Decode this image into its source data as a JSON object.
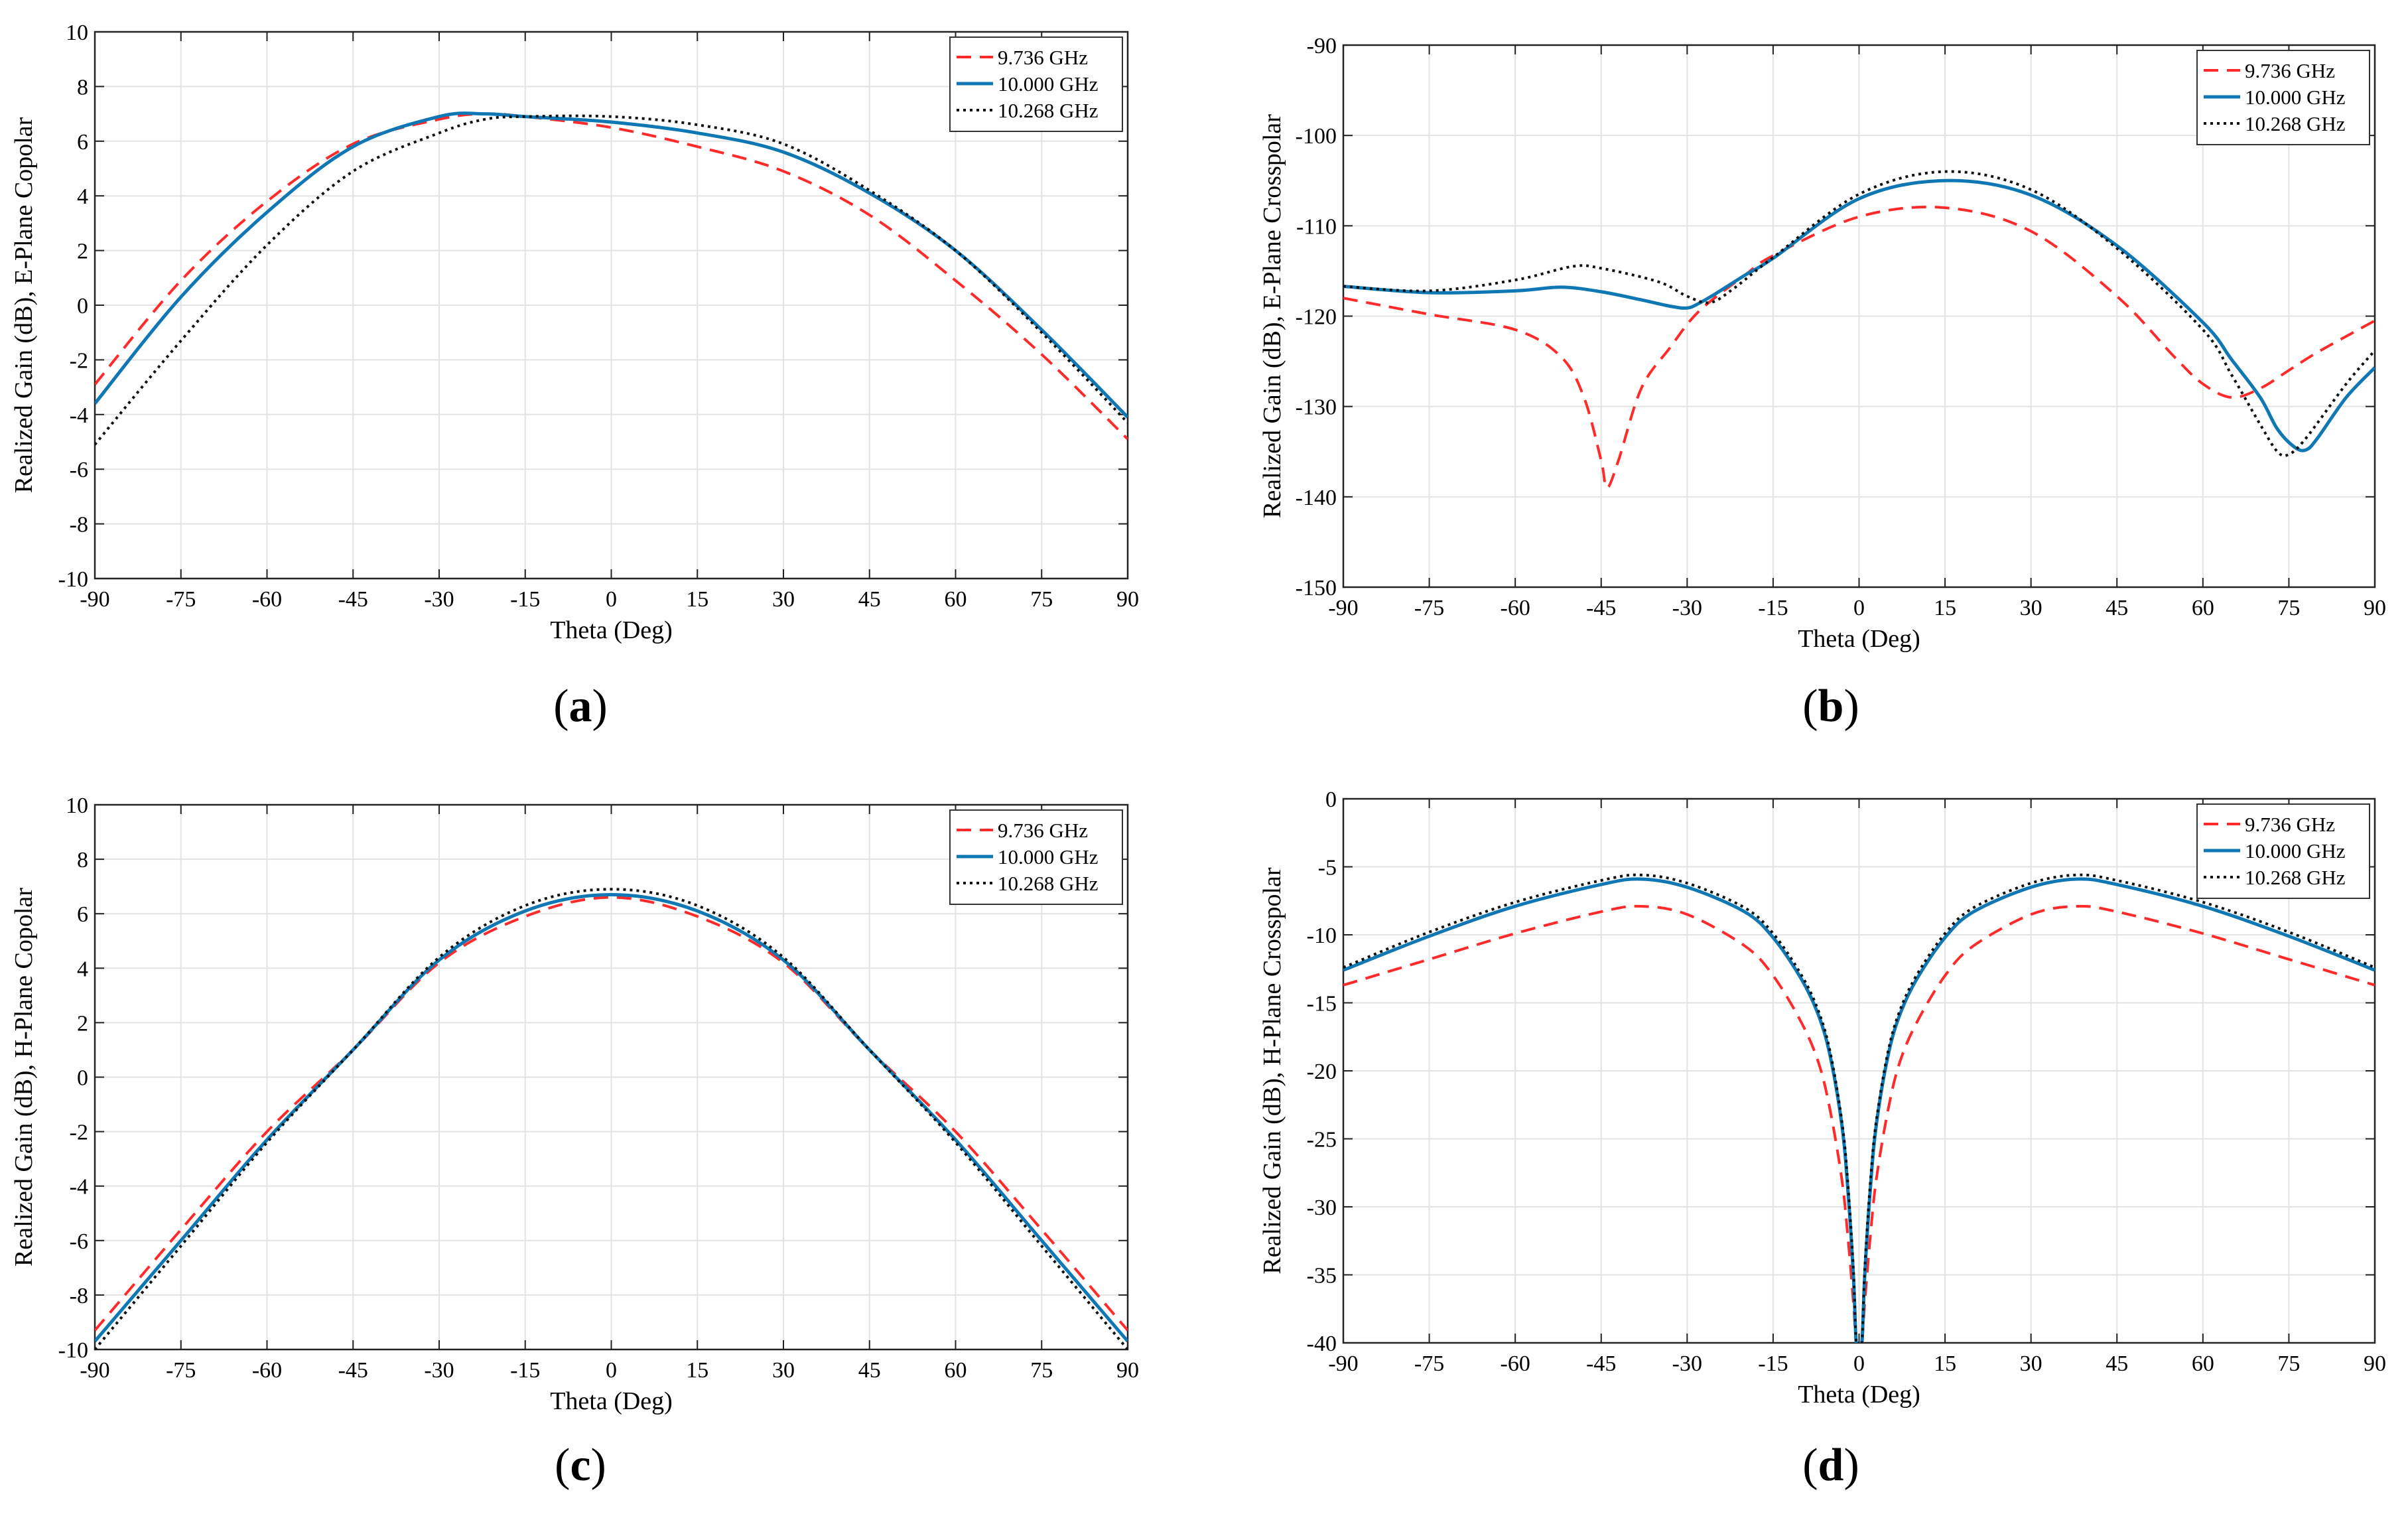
{
  "figure": {
    "panel_labels": [
      "a",
      "b",
      "c",
      "d"
    ],
    "legend_entries": [
      "9.736 GHz",
      "10.000 GHz",
      "10.268 GHz"
    ],
    "series_colors": [
      "#ff2a2a",
      "#0f78b4",
      "#111111"
    ]
  },
  "chart_data": [
    {
      "type": "line",
      "label": "(a)",
      "title": "",
      "xlabel": "Theta (Deg)",
      "ylabel": "Realized Gain (dB), E-Plane Copolar",
      "xlim": [
        -90,
        90
      ],
      "ylim": [
        -10,
        10
      ],
      "xticks": [
        -90,
        -75,
        -60,
        -45,
        -30,
        -15,
        0,
        15,
        30,
        45,
        60,
        75,
        90
      ],
      "yticks": [
        -10,
        -8,
        -6,
        -4,
        -2,
        0,
        2,
        4,
        6,
        8,
        10
      ],
      "grid": true,
      "legend": "top-right",
      "x": [
        -90,
        -75,
        -60,
        -45,
        -30,
        -22,
        -15,
        0,
        15,
        30,
        45,
        60,
        75,
        90
      ],
      "series": [
        {
          "name": "9.736 GHz",
          "style": "dashed",
          "values": [
            -2.9,
            0.9,
            3.8,
            5.9,
            6.8,
            7.0,
            6.9,
            6.5,
            5.8,
            4.9,
            3.3,
            0.9,
            -1.8,
            -4.9
          ]
        },
        {
          "name": "10.000 GHz",
          "style": "solid",
          "values": [
            -3.6,
            0.3,
            3.4,
            5.8,
            6.9,
            7.0,
            6.9,
            6.7,
            6.3,
            5.6,
            4.1,
            2.0,
            -0.9,
            -4.1
          ]
        },
        {
          "name": "10.268 GHz",
          "style": "dotted",
          "values": [
            -5.1,
            -1.3,
            2.2,
            4.9,
            6.3,
            6.8,
            6.9,
            6.9,
            6.6,
            5.9,
            4.2,
            2.0,
            -1.0,
            -4.3
          ]
        }
      ]
    },
    {
      "type": "line",
      "label": "(b)",
      "title": "",
      "xlabel": "Theta (Deg)",
      "ylabel": "Realized Gain (dB), E-Plane Crosspolar",
      "xlim": [
        -90,
        90
      ],
      "ylim": [
        -150,
        -90
      ],
      "xticks": [
        -90,
        -75,
        -60,
        -45,
        -30,
        -15,
        0,
        15,
        30,
        45,
        60,
        75,
        90
      ],
      "yticks": [
        -150,
        -140,
        -130,
        -120,
        -110,
        -100,
        -90
      ],
      "grid": true,
      "legend": "top-right",
      "series": [
        {
          "name": "9.736 GHz",
          "style": "dashed",
          "x": [
            -90,
            -75,
            -60,
            -52,
            -48,
            -45,
            -44,
            -42,
            -38,
            -33,
            -28,
            -20,
            -15,
            0,
            15,
            30,
            45,
            55,
            60,
            65,
            70,
            75,
            80,
            90
          ],
          "values": [
            -118,
            -119.8,
            -121.5,
            -124.5,
            -129,
            -136,
            -139,
            -136,
            -128,
            -123.5,
            -119.5,
            -115.5,
            -113.3,
            -109,
            -108,
            -110.6,
            -117.8,
            -124.5,
            -127.5,
            -129,
            -128,
            -126,
            -124,
            -120.5
          ]
        },
        {
          "name": "10.000 GHz",
          "style": "solid",
          "x": [
            -90,
            -75,
            -60,
            -52,
            -45,
            -38,
            -33,
            -30,
            -28,
            -25,
            -20,
            -15,
            0,
            15,
            30,
            45,
            60,
            65,
            70,
            73,
            76,
            78,
            80,
            85,
            90
          ],
          "values": [
            -116.7,
            -117.4,
            -117.2,
            -116.8,
            -117.3,
            -118.2,
            -118.9,
            -119.1,
            -118.6,
            -117.5,
            -115.5,
            -113.6,
            -107,
            -105,
            -106.6,
            -112.2,
            -120.7,
            -124.8,
            -129,
            -132.5,
            -134.5,
            -134.8,
            -133.5,
            -129,
            -125.7
          ]
        },
        {
          "name": "10.268 GHz",
          "style": "dotted",
          "x": [
            -90,
            -75,
            -60,
            -50,
            -45,
            -35,
            -30,
            -26,
            -22,
            -15,
            0,
            15,
            30,
            45,
            60,
            65,
            70,
            73,
            75,
            78,
            85,
            90
          ],
          "values": [
            -116.7,
            -117.2,
            -116,
            -114.5,
            -114.7,
            -116.2,
            -117.8,
            -118.5,
            -117,
            -113.5,
            -106.5,
            -104,
            -106,
            -112.5,
            -121.5,
            -126.5,
            -132,
            -135,
            -135.3,
            -133.5,
            -127.5,
            -123.8
          ]
        }
      ]
    },
    {
      "type": "line",
      "label": "(c)",
      "title": "",
      "xlabel": "Theta (Deg)",
      "ylabel": "Realized Gain (dB), H-Plane Copolar",
      "xlim": [
        -90,
        90
      ],
      "ylim": [
        -10,
        10
      ],
      "xticks": [
        -90,
        -75,
        -60,
        -45,
        -30,
        -15,
        0,
        15,
        30,
        45,
        60,
        75,
        90
      ],
      "yticks": [
        -10,
        -8,
        -6,
        -4,
        -2,
        0,
        2,
        4,
        6,
        8,
        10
      ],
      "grid": true,
      "legend": "top-right",
      "x": [
        -90,
        -75,
        -60,
        -45,
        -30,
        -15,
        0,
        15,
        30,
        45,
        60,
        75,
        90
      ],
      "series": [
        {
          "name": "9.736 GHz",
          "style": "dashed",
          "values": [
            -9.3,
            -5.6,
            -2.0,
            1.0,
            4.2,
            5.9,
            6.6,
            5.9,
            4.2,
            1.0,
            -2.0,
            -5.6,
            -9.3
          ]
        },
        {
          "name": "10.000 GHz",
          "style": "solid",
          "values": [
            -9.7,
            -6.0,
            -2.3,
            1.0,
            4.3,
            6.1,
            6.7,
            6.1,
            4.3,
            1.0,
            -2.3,
            -6.0,
            -9.7
          ]
        },
        {
          "name": "10.268 GHz",
          "style": "dotted",
          "values": [
            -10.0,
            -6.2,
            -2.4,
            1.0,
            4.4,
            6.3,
            6.9,
            6.3,
            4.4,
            1.0,
            -2.4,
            -6.2,
            -10.0
          ]
        }
      ]
    },
    {
      "type": "line",
      "label": "(d)",
      "title": "",
      "xlabel": "Theta (Deg)",
      "ylabel": "Realized Gain (dB), H-Plane Crosspolar",
      "xlim": [
        -90,
        90
      ],
      "ylim": [
        -40,
        0
      ],
      "xticks": [
        -90,
        -75,
        -60,
        -45,
        -30,
        -15,
        0,
        15,
        30,
        45,
        60,
        75,
        90
      ],
      "yticks": [
        -40,
        -35,
        -30,
        -25,
        -20,
        -15,
        -10,
        -5,
        0
      ],
      "grid": true,
      "legend": "top-right",
      "x": [
        -90,
        -75,
        -60,
        -45,
        -38,
        -30,
        -20,
        -15,
        -10,
        -7,
        -5,
        -3,
        -2,
        -1,
        -0.5,
        0,
        0.5,
        1,
        2,
        3,
        5,
        7,
        10,
        15,
        20,
        30,
        38,
        45,
        60,
        75,
        90
      ],
      "series": [
        {
          "name": "9.736 GHz",
          "style": "dashed",
          "values": [
            -13.7,
            -11.8,
            -9.9,
            -8.3,
            -7.9,
            -8.5,
            -10.8,
            -13,
            -16.5,
            -19.5,
            -23,
            -28,
            -32,
            -37,
            -40,
            -40,
            -40,
            -37,
            -32,
            -28,
            -23,
            -19.5,
            -16.5,
            -13,
            -10.8,
            -8.5,
            -7.9,
            -8.3,
            -9.9,
            -11.8,
            -13.7
          ]
        },
        {
          "name": "10.000 GHz",
          "style": "solid",
          "values": [
            -12.6,
            -10.1,
            -7.9,
            -6.3,
            -5.9,
            -6.5,
            -8.3,
            -10.2,
            -13.3,
            -16,
            -19,
            -24,
            -28.5,
            -35,
            -40,
            -40,
            -40,
            -35,
            -28.5,
            -24,
            -19,
            -16,
            -13.3,
            -10.2,
            -8.3,
            -6.5,
            -5.9,
            -6.3,
            -7.9,
            -10.1,
            -12.6
          ]
        },
        {
          "name": "10.268 GHz",
          "style": "dotted",
          "values": [
            -12.4,
            -9.8,
            -7.6,
            -6.0,
            -5.6,
            -6.2,
            -8.0,
            -9.9,
            -13.0,
            -15.7,
            -18.7,
            -23.7,
            -28,
            -34.5,
            -40,
            -40,
            -40,
            -34.5,
            -28,
            -23.7,
            -18.7,
            -15.7,
            -13.0,
            -9.9,
            -8.0,
            -6.2,
            -5.6,
            -6.0,
            -7.6,
            -9.8,
            -12.4
          ]
        }
      ]
    }
  ]
}
